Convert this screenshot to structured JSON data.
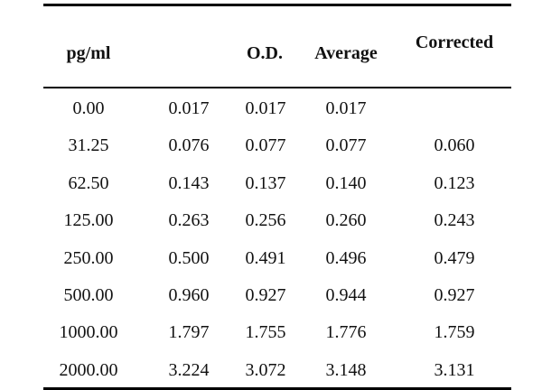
{
  "headers": {
    "concentration": "pg/ml",
    "od": "O.D.",
    "average": "Average",
    "corrected": "Corrected"
  },
  "rows": [
    {
      "conc": "0.00",
      "od1": "0.017",
      "od2": "0.017",
      "avg": "0.017",
      "corr": ""
    },
    {
      "conc": "31.25",
      "od1": "0.076",
      "od2": "0.077",
      "avg": "0.077",
      "corr": "0.060"
    },
    {
      "conc": "62.50",
      "od1": "0.143",
      "od2": "0.137",
      "avg": "0.140",
      "corr": "0.123"
    },
    {
      "conc": "125.00",
      "od1": "0.263",
      "od2": "0.256",
      "avg": "0.260",
      "corr": "0.243"
    },
    {
      "conc": "250.00",
      "od1": "0.500",
      "od2": "0.491",
      "avg": "0.496",
      "corr": "0.479"
    },
    {
      "conc": "500.00",
      "od1": "0.960",
      "od2": "0.927",
      "avg": "0.944",
      "corr": "0.927"
    },
    {
      "conc": "1000.00",
      "od1": "1.797",
      "od2": "1.755",
      "avg": "1.776",
      "corr": "1.759"
    },
    {
      "conc": "2000.00",
      "od1": "3.224",
      "od2": "3.072",
      "avg": "3.148",
      "corr": "3.131"
    }
  ]
}
